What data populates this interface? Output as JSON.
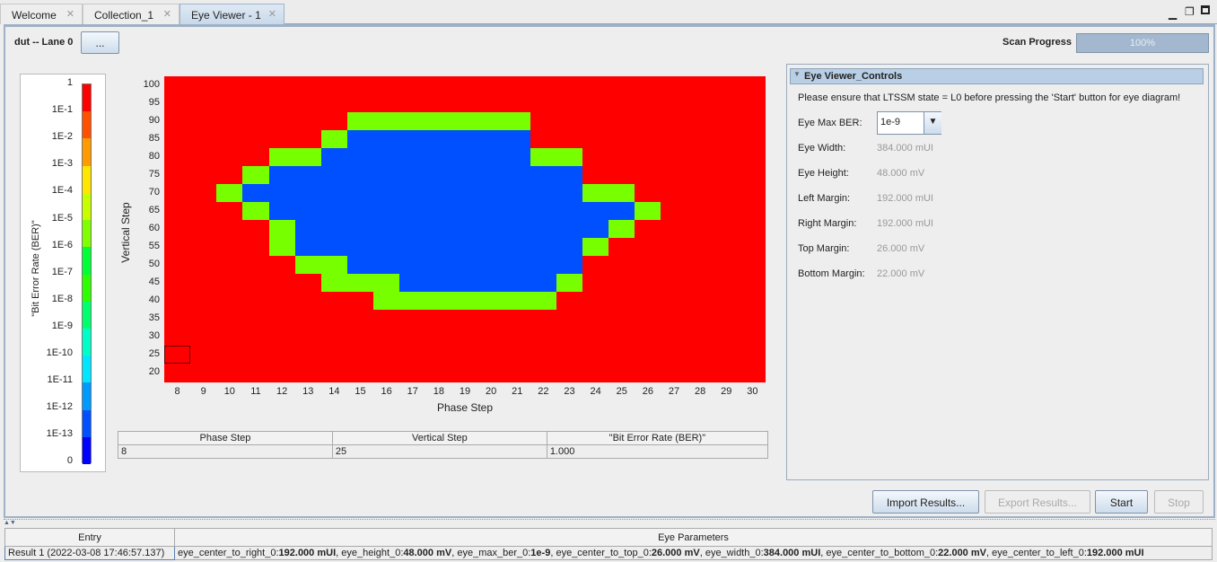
{
  "tabs": [
    {
      "label": "Welcome",
      "active": false
    },
    {
      "label": "Collection_1",
      "active": false
    },
    {
      "label": "Eye Viewer - 1",
      "active": true
    }
  ],
  "window_icons": [
    "minimize-icon",
    "restore-icon",
    "maximize-icon"
  ],
  "header": {
    "device_label": "dut -- Lane 0",
    "browse_button": "...",
    "scan_progress_label": "Scan Progress",
    "scan_progress_text": "100%",
    "scan_progress_value": 100
  },
  "legend": {
    "title": "\"Bit Error Rate (BER)\"",
    "ticks": [
      "1",
      "1E-1",
      "1E-2",
      "1E-3",
      "1E-4",
      "1E-5",
      "1E-6",
      "1E-7",
      "1E-8",
      "1E-9",
      "1E-10",
      "1E-11",
      "1E-12",
      "1E-13",
      "0"
    ],
    "colors": [
      "#ff0000",
      "#ff5000",
      "#ff9a00",
      "#ffe600",
      "#c8ff00",
      "#7fff00",
      "#00ff37",
      "#2dff00",
      "#00ff6e",
      "#00ffc8",
      "#00e6ff",
      "#009aff",
      "#0050ff",
      "#0000ff"
    ]
  },
  "chart_data": {
    "type": "heatmap",
    "xlabel": "Phase Step",
    "ylabel": "Vertical Step",
    "x": [
      8,
      9,
      10,
      11,
      12,
      13,
      14,
      15,
      16,
      17,
      18,
      19,
      20,
      21,
      22,
      23,
      24,
      25,
      26,
      27,
      28,
      29,
      30
    ],
    "y_ticks": [
      100,
      95,
      90,
      85,
      80,
      75,
      70,
      65,
      60,
      55,
      50,
      45,
      40,
      35,
      30,
      25,
      20
    ],
    "cell_colors": {
      "R": "#ff0000",
      "G": "#77ff00",
      "B": "#0050ff"
    },
    "rows_top_to_bottom": [
      "RRRRRRRRRRRRRRRRRRRRRRR",
      "RRRRRRRRRRRRRRRRRRRRRRR",
      "RRRRRRRGGGGGGGRRRRRRRRR",
      "RRRRRRGBBBBBBBRRRRRRRRR",
      "RRRRGGBBBBBBBBGGRRRRRRR",
      "RRRGBBBBBBBBBBBBRRRRRRR",
      "RRGBBBBBBBBBBBBBGGRRRRR",
      "RRRGBBBBBBBBBBBBBBGRRRR",
      "RRRRGBBBBBBBBBBBBGRRRRR",
      "RRRRGBBBBBBBBBBBGRRRRRR",
      "RRRRRGGBBBBBBBBBRRRRRRR",
      "RRRRRRGGGBBBBBBGRRRRRRR",
      "RRRRRRRRGGGGGGGRRRRRRRR",
      "RRRRRRRRRRRRRRRRRRRRRRR",
      "RRRRRRRRRRRRRRRRRRRRRRR",
      "RRRRRRRRRRRRRRRRRRRRRRR",
      "RRRRRRRRRRRRRRRRRRRRRRR"
    ],
    "selected_cell": {
      "x": 8,
      "y": 25
    }
  },
  "selection_table": {
    "headers": [
      "Phase Step",
      "Vertical Step",
      "\"Bit Error Rate (BER)\""
    ],
    "row": [
      "8",
      "25",
      "1.000"
    ]
  },
  "controls": {
    "title": "Eye Viewer_Controls",
    "note": "Please ensure that LTSSM state = L0 before pressing the 'Start' button for eye diagram!",
    "max_ber_label": "Eye Max BER:",
    "max_ber_value": "1e-9",
    "fields": [
      {
        "label": "Eye Width:",
        "value": "384.000 mUI"
      },
      {
        "label": "Eye Height:",
        "value": "48.000 mV"
      },
      {
        "label": "Left Margin:",
        "value": "192.000 mUI"
      },
      {
        "label": "Right Margin:",
        "value": "192.000 mUI"
      },
      {
        "label": "Top Margin:",
        "value": "26.000 mV"
      },
      {
        "label": "Bottom Margin:",
        "value": "22.000 mV"
      }
    ]
  },
  "buttons": {
    "import": "Import Results...",
    "export": "Export Results...",
    "start": "Start",
    "stop": "Stop"
  },
  "results": {
    "headers": [
      "Entry",
      "Eye Parameters"
    ],
    "rows": [
      {
        "entry": "Result 1 (2022-03-08 17:46:57.137)",
        "params": [
          [
            "eye_center_to_right_0:",
            "192.000 mUI"
          ],
          [
            "eye_height_0:",
            "48.000 mV"
          ],
          [
            "eye_max_ber_0:",
            "1e-9"
          ],
          [
            "eye_center_to_top_0:",
            "26.000 mV"
          ],
          [
            "eye_width_0:",
            "384.000 mUI"
          ],
          [
            "eye_center_to_bottom_0:",
            "22.000 mV"
          ],
          [
            "eye_center_to_left_0:",
            "192.000 mUI"
          ]
        ]
      }
    ]
  }
}
